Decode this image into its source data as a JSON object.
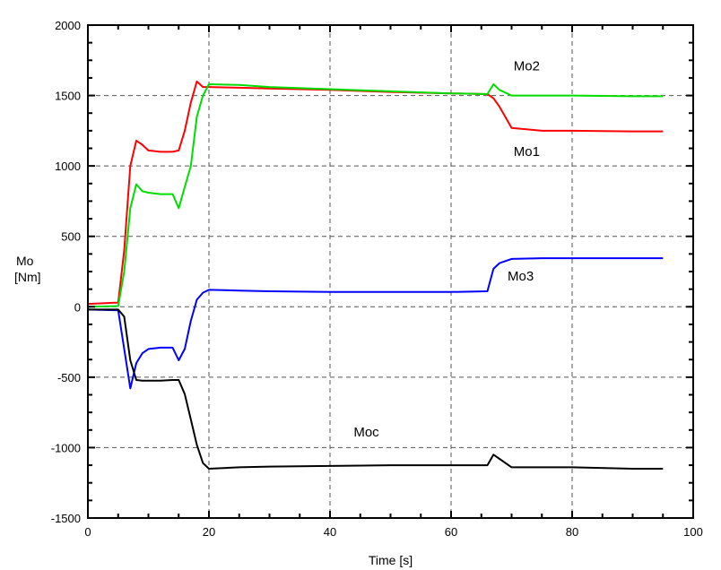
{
  "chart_data": {
    "type": "line",
    "title": "",
    "xlabel": "Time [s]",
    "ylabel_line1": "Mo",
    "ylabel_line2": "[Nm]",
    "xlim": [
      0,
      100
    ],
    "ylim": [
      -1500,
      2000
    ],
    "x_ticks": [
      0,
      20,
      40,
      60,
      80,
      100
    ],
    "y_ticks": [
      -1500,
      -1000,
      -500,
      0,
      500,
      1000,
      1500,
      2000
    ],
    "grid": true,
    "series": [
      {
        "name": "Mo1",
        "color": "#ff0000",
        "x": [
          0,
          5,
          6,
          7,
          8,
          9,
          10,
          12,
          14,
          15,
          16,
          17,
          18,
          19,
          20,
          25,
          30,
          40,
          50,
          60,
          66,
          67,
          68,
          70,
          75,
          80,
          90,
          95
        ],
        "y": [
          20,
          30,
          400,
          1000,
          1180,
          1150,
          1110,
          1100,
          1100,
          1110,
          1250,
          1450,
          1600,
          1560,
          1560,
          1555,
          1550,
          1540,
          1525,
          1515,
          1510,
          1480,
          1420,
          1270,
          1250,
          1250,
          1245,
          1245
        ]
      },
      {
        "name": "Mo2",
        "color": "#00dd00",
        "x": [
          0,
          5,
          6,
          7,
          8,
          9,
          10,
          12,
          14,
          15,
          16,
          17,
          18,
          19,
          20,
          25,
          30,
          40,
          50,
          60,
          66,
          67,
          68,
          70,
          75,
          80,
          90,
          95
        ],
        "y": [
          0,
          5,
          250,
          700,
          870,
          820,
          810,
          800,
          800,
          700,
          850,
          1000,
          1350,
          1500,
          1580,
          1575,
          1560,
          1545,
          1530,
          1515,
          1510,
          1580,
          1540,
          1500,
          1500,
          1500,
          1495,
          1495
        ]
      },
      {
        "name": "Mo3",
        "color": "#0000ff",
        "x": [
          0,
          5,
          6,
          7,
          8,
          9,
          10,
          12,
          14,
          15,
          16,
          17,
          18,
          19,
          20,
          25,
          30,
          40,
          50,
          60,
          66,
          67,
          68,
          70,
          75,
          80,
          90,
          95
        ],
        "y": [
          -20,
          -25,
          -300,
          -580,
          -400,
          -330,
          -300,
          -290,
          -290,
          -380,
          -300,
          -100,
          50,
          100,
          120,
          115,
          110,
          105,
          105,
          105,
          110,
          270,
          310,
          340,
          345,
          345,
          345,
          345
        ]
      },
      {
        "name": "Moc",
        "color": "#000000",
        "x": [
          0,
          5,
          6,
          7,
          8,
          9,
          10,
          12,
          14,
          15,
          16,
          17,
          18,
          19,
          20,
          25,
          30,
          40,
          50,
          60,
          66,
          67,
          68,
          70,
          75,
          80,
          90,
          95
        ],
        "y": [
          -20,
          -20,
          -70,
          -380,
          -520,
          -525,
          -525,
          -525,
          -520,
          -520,
          -620,
          -800,
          -980,
          -1110,
          -1150,
          -1140,
          -1135,
          -1130,
          -1125,
          -1125,
          -1125,
          -1050,
          -1080,
          -1140,
          -1140,
          -1140,
          -1150,
          -1150
        ]
      }
    ],
    "labels": [
      {
        "text": "Mo2",
        "x": 72.5,
        "y": 1680
      },
      {
        "text": "Mo1",
        "x": 72.5,
        "y": 1070
      },
      {
        "text": "Mo3",
        "x": 71.5,
        "y": 185
      },
      {
        "text": "Moc",
        "x": 46,
        "y": -920
      }
    ]
  }
}
